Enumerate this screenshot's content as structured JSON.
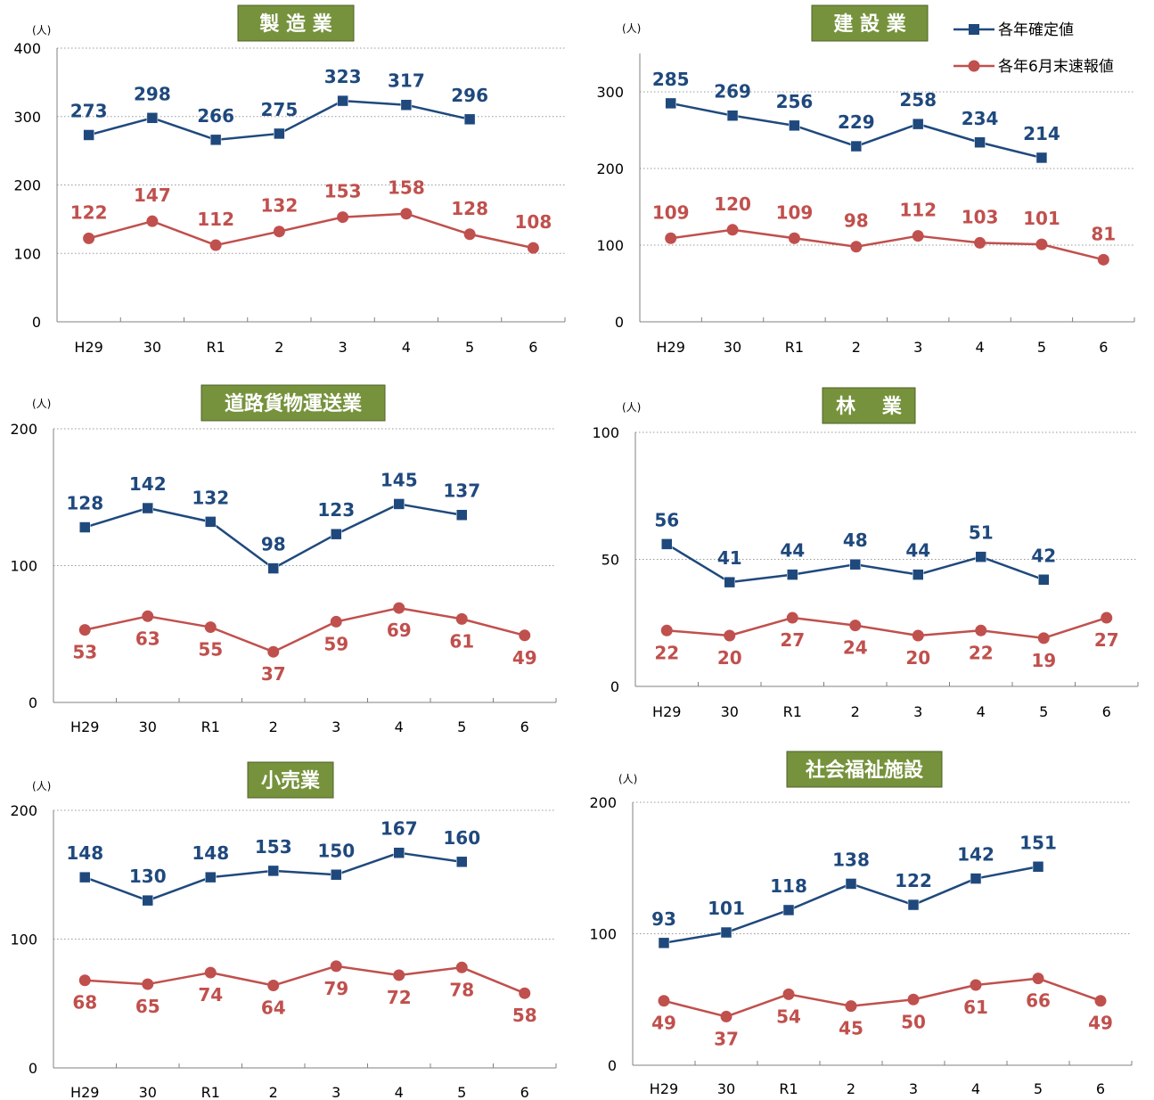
{
  "colors": {
    "kakutei": "#1f497d",
    "sokuho": "#c0504d",
    "title_bg": "#76923c"
  },
  "legend": {
    "items": [
      {
        "label": "各年確定値",
        "color": "#1f497d",
        "marker": "square"
      },
      {
        "label": "各年6月末速報値",
        "color": "#c0504d",
        "marker": "circle"
      }
    ]
  },
  "chart_data": [
    {
      "type": "line",
      "title": "製 造 業",
      "unit": "(人)",
      "categories": [
        "H29",
        "30",
        "R1",
        "2",
        "3",
        "4",
        "5",
        "6"
      ],
      "ylim": [
        0,
        400
      ],
      "yticks": [
        0,
        100,
        200,
        300,
        400
      ],
      "grid": true,
      "series": [
        {
          "name": "各年確定値",
          "marker": "square",
          "color": "#1f497d",
          "values": [
            273,
            298,
            266,
            275,
            323,
            317,
            296,
            null
          ]
        },
        {
          "name": "各年6月末速報値",
          "marker": "circle",
          "color": "#c0504d",
          "values": [
            122,
            147,
            112,
            132,
            153,
            158,
            128,
            108
          ]
        }
      ]
    },
    {
      "type": "line",
      "title": "建 設 業",
      "unit": "(人)",
      "categories": [
        "H29",
        "30",
        "R1",
        "2",
        "3",
        "4",
        "5",
        "6"
      ],
      "ylim": [
        0,
        350
      ],
      "yticks": [
        0,
        100,
        200,
        300
      ],
      "grid": true,
      "series": [
        {
          "name": "各年確定値",
          "marker": "square",
          "color": "#1f497d",
          "values": [
            285,
            269,
            256,
            229,
            258,
            234,
            214,
            null
          ]
        },
        {
          "name": "各年6月末速報値",
          "marker": "circle",
          "color": "#c0504d",
          "values": [
            109,
            120,
            109,
            98,
            112,
            103,
            101,
            81
          ]
        }
      ]
    },
    {
      "type": "line",
      "title": "道路貨物運送業",
      "unit": "(人)",
      "categories": [
        "H29",
        "30",
        "R1",
        "2",
        "3",
        "4",
        "5",
        "6"
      ],
      "ylim": [
        0,
        200
      ],
      "yticks": [
        0,
        100,
        200
      ],
      "grid": true,
      "series": [
        {
          "name": "各年確定値",
          "marker": "square",
          "color": "#1f497d",
          "values": [
            128,
            142,
            132,
            98,
            123,
            145,
            137,
            null
          ]
        },
        {
          "name": "各年6月末速報値",
          "marker": "circle",
          "color": "#c0504d",
          "values": [
            53,
            63,
            55,
            37,
            59,
            69,
            61,
            49
          ]
        }
      ]
    },
    {
      "type": "line",
      "title": "林　 業",
      "unit": "(人)",
      "categories": [
        "H29",
        "30",
        "R1",
        "2",
        "3",
        "4",
        "5",
        "6"
      ],
      "ylim": [
        0,
        100
      ],
      "yticks": [
        0,
        50,
        100
      ],
      "grid": true,
      "series": [
        {
          "name": "各年確定値",
          "marker": "square",
          "color": "#1f497d",
          "values": [
            56,
            41,
            44,
            48,
            44,
            51,
            42,
            null
          ]
        },
        {
          "name": "各年6月末速報値",
          "marker": "circle",
          "color": "#c0504d",
          "values": [
            22,
            20,
            27,
            24,
            20,
            22,
            19,
            27
          ]
        }
      ]
    },
    {
      "type": "line",
      "title": "小売業",
      "unit": "(人)",
      "categories": [
        "H29",
        "30",
        "R1",
        "2",
        "3",
        "4",
        "5",
        "6"
      ],
      "ylim": [
        0,
        200
      ],
      "yticks": [
        0,
        100,
        200
      ],
      "grid": true,
      "series": [
        {
          "name": "各年確定値",
          "marker": "square",
          "color": "#1f497d",
          "values": [
            148,
            130,
            148,
            153,
            150,
            167,
            160,
            null
          ]
        },
        {
          "name": "各年6月末速報値",
          "marker": "circle",
          "color": "#c0504d",
          "values": [
            68,
            65,
            74,
            64,
            79,
            72,
            78,
            58
          ]
        }
      ]
    },
    {
      "type": "line",
      "title": "社会福祉施設",
      "unit": "(人)",
      "categories": [
        "H29",
        "30",
        "R1",
        "2",
        "3",
        "4",
        "5",
        "6"
      ],
      "ylim": [
        0,
        200
      ],
      "yticks": [
        0,
        100,
        200
      ],
      "grid": true,
      "series": [
        {
          "name": "各年確定値",
          "marker": "square",
          "color": "#1f497d",
          "values": [
            93,
            101,
            118,
            138,
            122,
            142,
            151,
            null
          ]
        },
        {
          "name": "各年6月末速報値",
          "marker": "circle",
          "color": "#c0504d",
          "values": [
            49,
            37,
            54,
            45,
            50,
            61,
            66,
            49
          ]
        }
      ]
    }
  ]
}
